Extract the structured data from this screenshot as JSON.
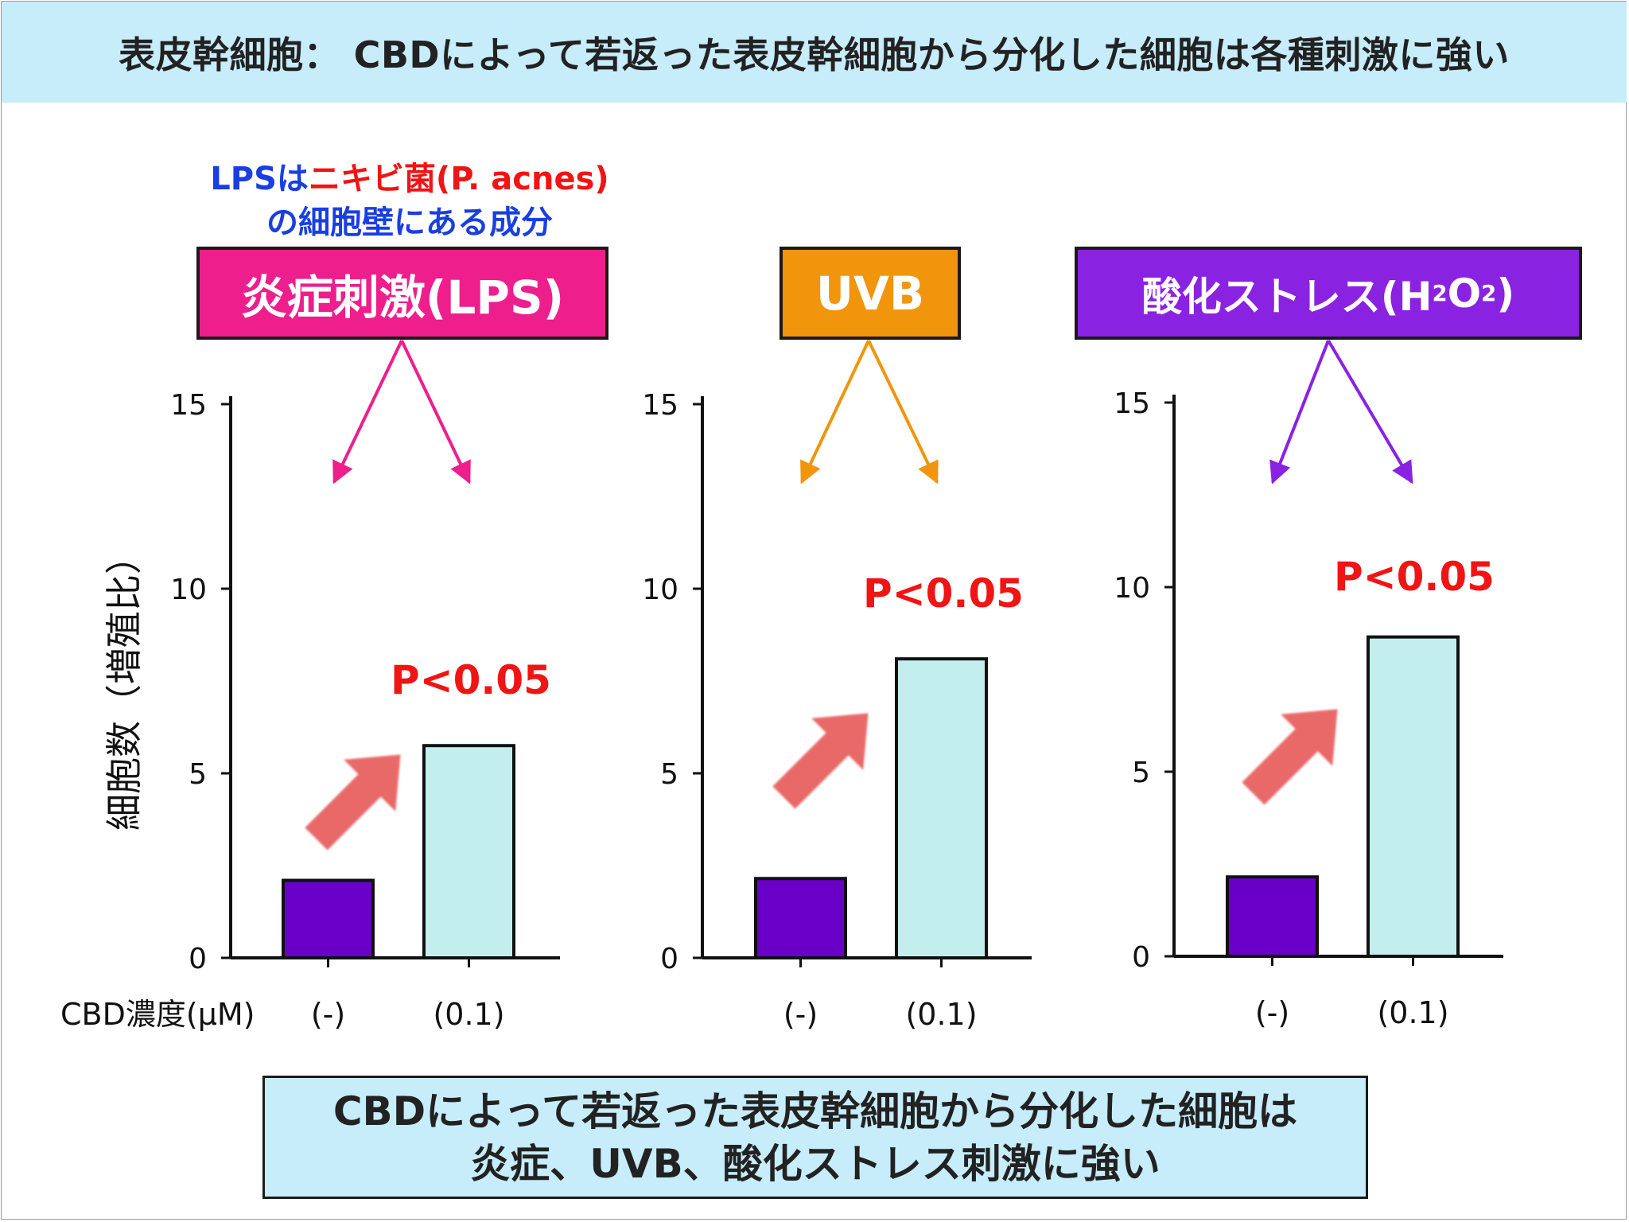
{
  "header": {
    "title": "表皮幹細胞： CBDによって若返った表皮幹細胞から分化した細胞は各種刺激に強い"
  },
  "note": {
    "part1": "LPSは",
    "part2": "ニキビ菌(P. acnes)",
    "line2": "の細胞壁にある成分"
  },
  "colors": {
    "lps": "#ee1e8c",
    "uvb": "#f0950c",
    "h2o2": "#8a22e2",
    "bar_control": "#6a00c8",
    "bar_cbd": "#c2eeee",
    "pvalue": "#f01414",
    "up_arrow": "#e86262",
    "banner": "#c7ecfa"
  },
  "chart_data": {
    "type": "bar",
    "ylabel": "細胞数（増殖比）",
    "xlabel": "CBD濃度(μM)",
    "categories": [
      "(-)",
      "(0.1)"
    ],
    "ylim": [
      0,
      15
    ],
    "yticks": [
      0,
      5,
      10,
      15
    ],
    "panels": [
      {
        "stimulus": "炎症刺激(LPS)",
        "values": [
          2.1,
          5.75
        ],
        "pvalue": "P<0.05",
        "color_key": "lps"
      },
      {
        "stimulus": "UVB",
        "values": [
          2.15,
          8.1
        ],
        "pvalue": "P<0.05",
        "color_key": "uvb"
      },
      {
        "stimulus": "酸化ストレス(H2O2)",
        "stimulus_parts": [
          "酸化ストレス(H",
          "2",
          "O",
          "2",
          ")"
        ],
        "values": [
          2.15,
          8.65
        ],
        "pvalue": "P<0.05",
        "color_key": "h2o2"
      }
    ]
  },
  "conclusion": {
    "line1": "CBDによって若返った表皮幹細胞から分化した細胞は",
    "line2": "炎症、UVB、酸化ストレス刺激に強い"
  }
}
